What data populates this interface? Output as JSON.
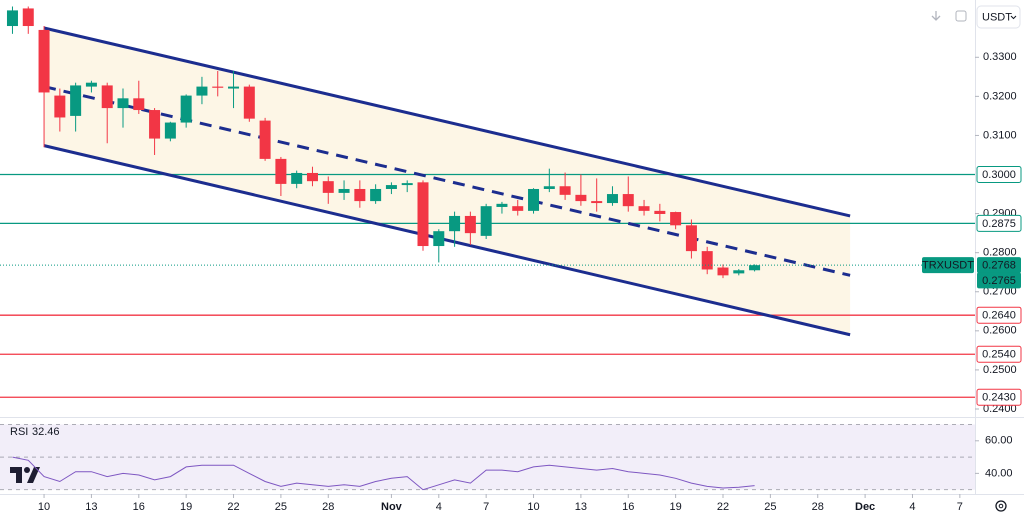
{
  "chart_data": {
    "type": "candlestick",
    "symbol": "TRXUSDT",
    "quote": "USDT",
    "up_color": "#089981",
    "down_color": "#f23645",
    "x": [
      8,
      9,
      10,
      11,
      12,
      13,
      14,
      15,
      16,
      17,
      18,
      19,
      20,
      21,
      22,
      23,
      24,
      25,
      26,
      27,
      28,
      29,
      30,
      31,
      32,
      33,
      34,
      35,
      36,
      37,
      38,
      39,
      40,
      41,
      42,
      43,
      44,
      45,
      46,
      47,
      48,
      49,
      50,
      51,
      52,
      53,
      54,
      55
    ],
    "open": [
      0.338,
      0.3425,
      0.337,
      0.3202,
      0.315,
      0.3225,
      0.3228,
      0.317,
      0.3195,
      0.3165,
      0.3092,
      0.3133,
      0.3202,
      0.3225,
      0.322,
      0.3225,
      0.3138,
      0.304,
      0.2976,
      0.3004,
      0.2983,
      0.2953,
      0.2963,
      0.2932,
      0.2963,
      0.2973,
      0.298,
      0.2817,
      0.2855,
      0.2894,
      0.2843,
      0.2917,
      0.2919,
      0.2907,
      0.2963,
      0.297,
      0.2948,
      0.2932,
      0.2927,
      0.295,
      0.2919,
      0.2907,
      0.2904,
      0.287,
      0.2804,
      0.2762,
      0.2747,
      0.2755
    ],
    "high": [
      0.343,
      0.343,
      0.338,
      0.322,
      0.3235,
      0.324,
      0.3235,
      0.322,
      0.324,
      0.317,
      0.3135,
      0.3205,
      0.325,
      0.3265,
      0.3265,
      0.323,
      0.3145,
      0.3045,
      0.301,
      0.302,
      0.2995,
      0.2985,
      0.2985,
      0.2975,
      0.298,
      0.2985,
      0.2985,
      0.286,
      0.2905,
      0.2905,
      0.2925,
      0.293,
      0.2935,
      0.2965,
      0.3015,
      0.3005,
      0.3,
      0.299,
      0.297,
      0.2995,
      0.2935,
      0.2925,
      0.2905,
      0.2885,
      0.2815,
      0.277,
      0.2758,
      0.277
    ],
    "low": [
      0.336,
      0.336,
      0.307,
      0.311,
      0.311,
      0.321,
      0.308,
      0.312,
      0.3155,
      0.305,
      0.3085,
      0.312,
      0.318,
      0.32,
      0.317,
      0.3135,
      0.3035,
      0.2945,
      0.2965,
      0.297,
      0.2925,
      0.2935,
      0.2915,
      0.2925,
      0.295,
      0.2955,
      0.2805,
      0.2775,
      0.2815,
      0.282,
      0.2835,
      0.29,
      0.2895,
      0.29,
      0.2955,
      0.2935,
      0.292,
      0.2905,
      0.292,
      0.2905,
      0.2895,
      0.288,
      0.286,
      0.2785,
      0.2745,
      0.2735,
      0.2742,
      0.2752
    ],
    "close": [
      0.342,
      0.338,
      0.321,
      0.3146,
      0.3228,
      0.3235,
      0.317,
      0.3195,
      0.3165,
      0.3092,
      0.3133,
      0.3202,
      0.3225,
      0.3222,
      0.3225,
      0.3143,
      0.304,
      0.2976,
      0.3004,
      0.2983,
      0.2953,
      0.2963,
      0.2932,
      0.2963,
      0.2973,
      0.2978,
      0.2817,
      0.2855,
      0.2894,
      0.285,
      0.2919,
      0.2925,
      0.2907,
      0.2963,
      0.297,
      0.2948,
      0.2932,
      0.2927,
      0.295,
      0.2919,
      0.2907,
      0.2899,
      0.287,
      0.2804,
      0.2757,
      0.2742,
      0.2755,
      0.2768
    ],
    "xlim": [
      7.21,
      68.96
    ],
    "xticks": [
      10,
      13,
      16,
      19,
      22,
      25,
      28,
      {
        "value": 32,
        "label": "Nov"
      },
      {
        "value": 35,
        "label": "4"
      },
      {
        "value": 38,
        "label": "7"
      },
      {
        "value": 41,
        "label": "10"
      },
      {
        "value": 44,
        "label": "13"
      },
      {
        "value": 47,
        "label": "16"
      },
      {
        "value": 50,
        "label": "19"
      },
      {
        "value": 53,
        "label": "22"
      },
      {
        "value": 56,
        "label": "25"
      },
      {
        "value": 59,
        "label": "28"
      },
      {
        "value": 62,
        "label": "Dec"
      },
      {
        "value": 65,
        "label": "4"
      },
      {
        "value": 68,
        "label": "7"
      }
    ],
    "ylim": [
      0.23795,
      0.34466
    ],
    "yticks": [
      {
        "value": 0.33,
        "label": "0.3300"
      },
      {
        "value": 0.32,
        "label": "0.3200"
      },
      {
        "value": 0.31,
        "label": "0.3100"
      },
      {
        "value": 0.29,
        "label": "0.2900"
      },
      {
        "value": 0.28,
        "label": "0.2800"
      },
      {
        "value": 0.27,
        "label": "0.2700"
      },
      {
        "value": 0.26,
        "label": "0.2600"
      },
      {
        "value": 0.25,
        "label": "0.2500"
      },
      {
        "value": 0.24,
        "label": "0.2400"
      }
    ],
    "levels": [
      {
        "value": 0.3,
        "label": "0.3000",
        "color": "#089981"
      },
      {
        "value": 0.2875,
        "label": "0.2875",
        "color": "#089981"
      },
      {
        "value": 0.264,
        "label": "0.2640",
        "color": "#f23645"
      },
      {
        "value": 0.254,
        "label": "0.2540",
        "color": "#f23645"
      },
      {
        "value": 0.243,
        "label": "0.2430",
        "color": "#f23645"
      }
    ],
    "last_price": 0.2768,
    "mark_price": 0.2765,
    "channel": {
      "color": "#1c2d8f",
      "fill": "#fdf6e6",
      "upper": {
        "x": [
          10,
          61.05
        ],
        "y": [
          0.3375,
          0.2894
        ]
      },
      "middle": {
        "x": [
          10,
          61.05
        ],
        "y": [
          0.3225,
          0.2742
        ]
      },
      "lower": {
        "x": [
          10,
          61.05
        ],
        "y": [
          0.3074,
          0.259
        ]
      }
    },
    "rsi": {
      "title": "RSI",
      "value": 32.46,
      "color": "#7e57c2",
      "values": [
        50,
        48,
        38,
        35,
        41,
        41,
        38,
        40,
        39,
        36,
        38,
        44,
        45,
        45,
        45,
        40,
        35,
        32,
        34,
        33,
        32,
        33,
        32,
        35,
        37,
        38,
        30,
        33,
        36,
        34,
        42,
        42,
        41,
        44,
        45,
        44,
        43,
        42,
        43,
        41,
        40,
        39,
        37,
        34,
        32,
        31,
        31.5,
        32.46
      ],
      "ylim": [
        27.33,
        74
      ],
      "yticks": [
        {
          "value": 60,
          "label": "60.00"
        },
        {
          "value": 40,
          "label": "40.00"
        }
      ],
      "band": [
        30,
        70
      ],
      "midline": 50
    }
  }
}
